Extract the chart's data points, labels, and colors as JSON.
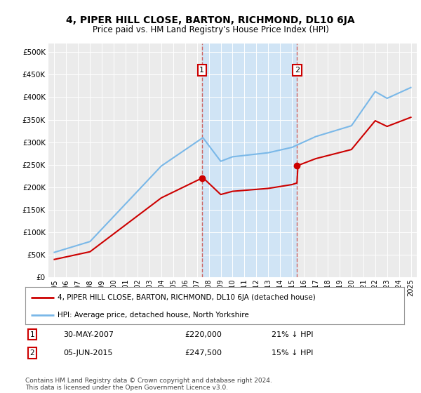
{
  "title": "4, PIPER HILL CLOSE, BARTON, RICHMOND, DL10 6JA",
  "subtitle": "Price paid vs. HM Land Registry's House Price Index (HPI)",
  "sale1_date": "30-MAY-2007",
  "sale1_price": 220000,
  "sale1_label": "21% ↓ HPI",
  "sale2_date": "05-JUN-2015",
  "sale2_price": 247500,
  "sale2_label": "15% ↓ HPI",
  "legend_line1": "4, PIPER HILL CLOSE, BARTON, RICHMOND, DL10 6JA (detached house)",
  "legend_line2": "HPI: Average price, detached house, North Yorkshire",
  "footer": "Contains HM Land Registry data © Crown copyright and database right 2024.\nThis data is licensed under the Open Government Licence v3.0.",
  "hpi_color": "#7ab8e8",
  "price_color": "#cc0000",
  "marker_color": "#cc0000",
  "sale1_x": 2007.42,
  "sale2_x": 2015.43,
  "ylim_max": 520000,
  "ylim_min": 0,
  "xlim_min": 1994.5,
  "xlim_max": 2025.5,
  "background_color": "#ffffff",
  "plot_bg_color": "#ebebeb",
  "shade_color": "#d0e4f5",
  "grid_color": "#ffffff",
  "vline_color": "#cc6666"
}
